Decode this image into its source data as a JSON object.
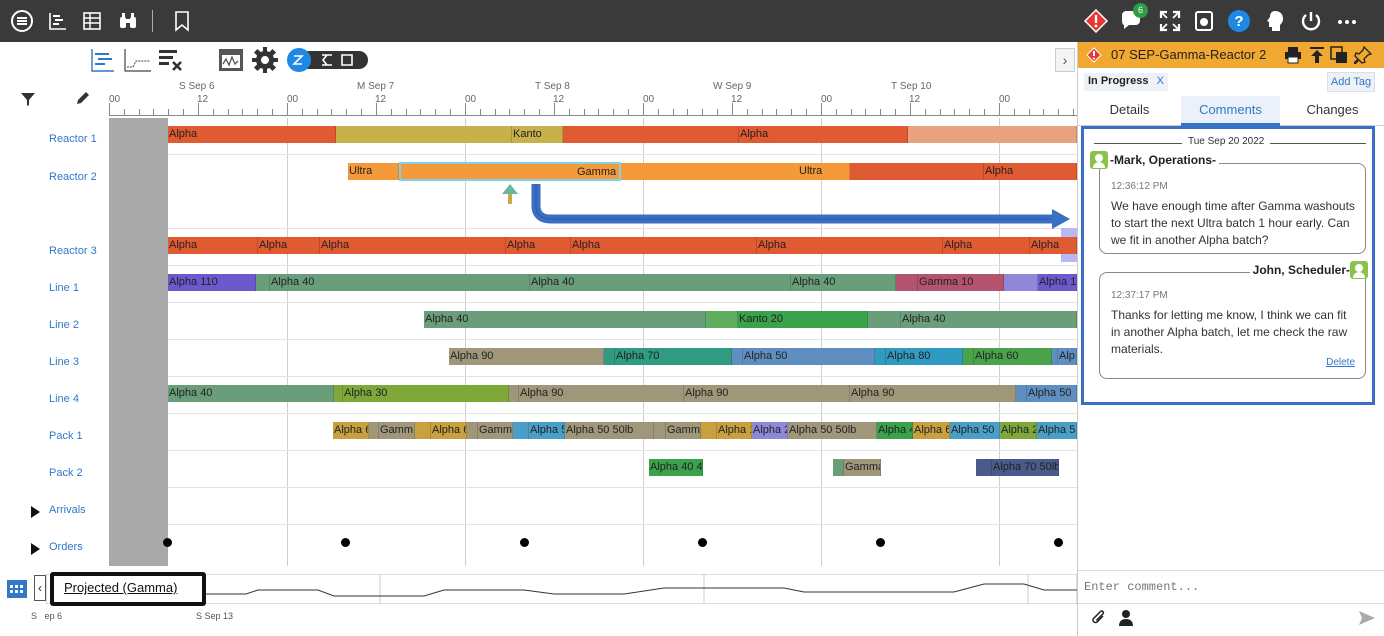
{
  "topbar": {
    "notification_count": "6"
  },
  "timeline": {
    "days": [
      "S Sep 6",
      "M Sep 7",
      "T Sep 8",
      "W Sep 9",
      "T Sep 10"
    ],
    "hour_00": "00",
    "hour_12": "12",
    "rows": [
      "Reactor 1",
      "Reactor 2",
      "Reactor 3",
      "Line 1",
      "Line 2",
      "Line 3",
      "Line 4",
      "Pack 1",
      "Pack 2"
    ],
    "arrivals": "Arrivals",
    "orders": "Orders",
    "colors": {
      "red": "#e05a32",
      "orange": "#f59a3a",
      "olive": "#c8b04a",
      "green": "#6a9e7a",
      "purple": "#6a5acd",
      "pink": "#b3536d",
      "darkgreen": "#3aa24a",
      "teal": "#2f9b80",
      "blue": "#5f8fc0",
      "gray": "#a0977a",
      "lime": "#7fa83a",
      "accent": "#3a6fc4"
    }
  },
  "bars": {
    "r1": [
      "Alpha",
      "Kanto",
      "Alpha"
    ],
    "r2": [
      "Ultra",
      "Gamma",
      "Ultra",
      "Alpha"
    ],
    "r3": [
      "Alpha",
      "Alpha",
      "Alpha",
      "Alpha",
      "Alpha",
      "Alpha",
      "Alpha",
      "Alpha"
    ],
    "l1": [
      "Alpha 110",
      "Alpha 40",
      "Alpha 40",
      "Alpha 40",
      "Gamma 10",
      "Alpha 1"
    ],
    "l2": [
      "Alpha 40",
      "Kanto 20",
      "Alpha 40"
    ],
    "l3": [
      "Alpha 90",
      "Alpha 70",
      "Alpha 50",
      "Alpha 80",
      "Alpha 60",
      "Alp"
    ],
    "l4": [
      "Alpha 40",
      "Alpha 30",
      "Alpha 90",
      "Alpha 90",
      "Alpha 90",
      "Alpha 50"
    ],
    "p1": [
      "Alpha 6",
      "Gamm",
      "Alpha 6",
      "Gamm",
      "Alpha 5",
      "Alpha 50 50lb",
      "Gamm",
      "Alpha 1",
      "Alpha 2",
      "Alpha 50 50lb",
      "Alpha 4",
      "Alpha 6",
      "Alpha 50",
      "Alpha 2",
      "Alpha 5"
    ],
    "p2": [
      "Alpha 40 4",
      "Gamma",
      "Alpha 70 50lb"
    ]
  },
  "bottom": {
    "projection_label": "Projected (Gamma)",
    "date_start": "S   ep 6",
    "date_end": "S Sep 13"
  },
  "panel": {
    "title": "07 SEP-Gamma-Reactor 2",
    "status_tag": "In Progress",
    "status_close": "X",
    "add_tag": "Add Tag",
    "tabs": [
      "Details",
      "Comments",
      "Changes"
    ],
    "active_tab": "Comments",
    "date_divider": "Tue Sep 20 2022",
    "comments": [
      {
        "author": "Mark, Operations",
        "time": "12:36:12 PM",
        "text": "We have enough time after Gamma washouts to start the next Ultra batch 1 hour early. Can we fit in another Alpha batch?"
      },
      {
        "author": "John, Scheduler",
        "time": "12:37:17 PM",
        "text": "Thanks for letting me know, I think we can fit in another Alpha batch, let me check the raw materials.",
        "action": "Delete"
      }
    ],
    "comment_placeholder": "Enter comment..."
  }
}
